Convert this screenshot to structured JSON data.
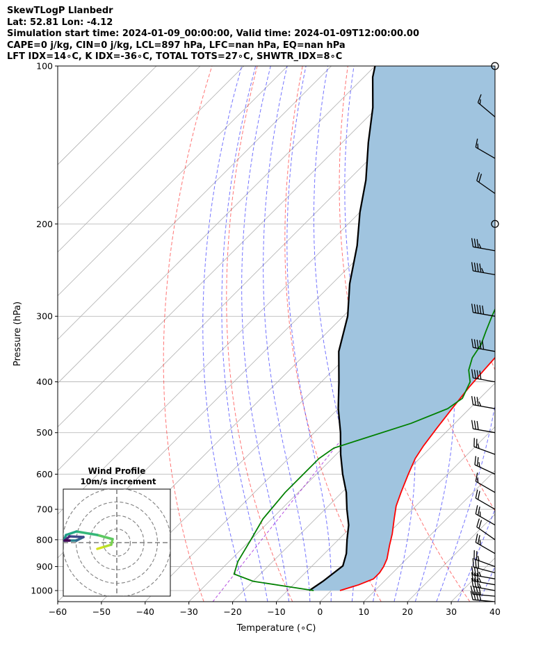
{
  "header": {
    "title": "SkewTLogP Llanbedr",
    "location": "Lat: 52.81   Lon: -4.12",
    "times": "Simulation start time: 2024-01-09_00:00:00, Valid time: 2024-01-09T12:00:00.00",
    "cape_line": "CAPE=0 j/kg, CIN=0 j/kg, LCL=897 hPa, LFC=nan hPa, EQ=nan hPa",
    "index_line": "LFT IDX=14∘C, K IDX=-36∘C, TOTAL TOTS=27∘C, SHWTR_IDX=8∘C"
  },
  "chart_data": {
    "type": "skewt-logp",
    "xlabel": "Temperature (∘C)",
    "ylabel": "Pressure (hPa)",
    "xlim": [
      -60,
      40
    ],
    "ylim": [
      1050,
      100
    ],
    "y_scale": "log",
    "x_ticks": [
      "−60",
      "−50",
      "−40",
      "−30",
      "−20",
      "−10",
      "0",
      "10",
      "20",
      "30",
      "40"
    ],
    "y_ticks": [
      "100",
      "200",
      "300",
      "400",
      "500",
      "600",
      "700",
      "800",
      "900",
      "1000"
    ],
    "grid": true,
    "temperature_profile": {
      "color": "#ff0000",
      "points": [
        [
          2,
          1000
        ],
        [
          5,
          975
        ],
        [
          7,
          950
        ],
        [
          7,
          925
        ],
        [
          6.5,
          900
        ],
        [
          5.5,
          870
        ],
        [
          3,
          820
        ],
        [
          1,
          780
        ],
        [
          -2,
          730
        ],
        [
          -4.5,
          690
        ],
        [
          -6.5,
          650
        ],
        [
          -9,
          600
        ],
        [
          -11,
          560
        ],
        [
          -12,
          530
        ],
        [
          -13,
          490
        ],
        [
          -14,
          450
        ],
        [
          -15,
          410
        ],
        [
          -15.5,
          380
        ],
        [
          -16,
          350
        ],
        [
          -17,
          320
        ],
        [
          -18,
          300
        ],
        [
          -17,
          280
        ],
        [
          -15,
          260
        ],
        [
          -13,
          245
        ],
        [
          -11,
          232
        ],
        [
          -10,
          220
        ],
        [
          -10,
          210
        ],
        [
          -10,
          200
        ],
        [
          -9,
          185
        ],
        [
          -7,
          173
        ],
        [
          -4,
          163
        ],
        [
          -1,
          155
        ],
        [
          0,
          147
        ],
        [
          -1,
          138
        ],
        [
          -2,
          130
        ],
        [
          -2,
          124
        ],
        [
          -1,
          118
        ],
        [
          1,
          111
        ],
        [
          2,
          104
        ],
        [
          2,
          100
        ]
      ]
    },
    "dewpoint_profile": {
      "color": "#008000",
      "points": [
        [
          -4,
          1000
        ],
        [
          -10,
          985
        ],
        [
          -20,
          960
        ],
        [
          -26,
          930
        ],
        [
          -28,
          880
        ],
        [
          -30,
          800
        ],
        [
          -32,
          730
        ],
        [
          -33,
          650
        ],
        [
          -33,
          590
        ],
        [
          -33,
          560
        ],
        [
          -32,
          535
        ],
        [
          -20,
          480
        ],
        [
          -15,
          450
        ],
        [
          -14,
          430
        ],
        [
          -16,
          400
        ],
        [
          -19,
          380
        ],
        [
          -21,
          360
        ],
        [
          -22,
          340
        ],
        [
          -24,
          320
        ],
        [
          -26,
          300
        ],
        [
          -28,
          280
        ],
        [
          -30,
          260
        ],
        [
          -31,
          240
        ],
        [
          -31,
          220
        ],
        [
          -30,
          205
        ],
        [
          -29,
          193
        ],
        [
          -29,
          183
        ],
        [
          -29,
          175
        ],
        [
          -28,
          165
        ],
        [
          -26,
          155
        ],
        [
          -25,
          145
        ],
        [
          -23,
          135
        ],
        [
          -20,
          125
        ],
        [
          -17,
          117
        ],
        [
          -15,
          110
        ],
        [
          -13,
          104
        ],
        [
          -12,
          100
        ]
      ]
    },
    "parcel_profile": {
      "color": "#000000",
      "points": [
        [
          -5,
          1000
        ],
        [
          -4,
          960
        ],
        [
          -3,
          897
        ],
        [
          -5,
          850
        ],
        [
          -8,
          800
        ],
        [
          -11,
          750
        ],
        [
          -15,
          700
        ],
        [
          -19,
          650
        ],
        [
          -24,
          600
        ],
        [
          -29,
          550
        ],
        [
          -34,
          500
        ],
        [
          -40,
          450
        ],
        [
          -46,
          400
        ],
        [
          -53,
          350
        ],
        [
          -59,
          300
        ],
        [
          -66,
          260
        ],
        [
          -73,
          220
        ],
        [
          -80,
          190
        ],
        [
          -86,
          165
        ],
        [
          -94,
          140
        ],
        [
          -101,
          120
        ],
        [
          -108,
          105
        ],
        [
          -110,
          100
        ]
      ]
    },
    "wind_barbs": {
      "color": "#000000",
      "units": "knots",
      "barbs": [
        {
          "p": 1050,
          "spd": 40,
          "dir": 275
        },
        {
          "p": 1025,
          "spd": 40,
          "dir": 275
        },
        {
          "p": 1000,
          "spd": 35,
          "dir": 280
        },
        {
          "p": 975,
          "spd": 35,
          "dir": 280
        },
        {
          "p": 950,
          "spd": 35,
          "dir": 280
        },
        {
          "p": 925,
          "spd": 30,
          "dir": 285
        },
        {
          "p": 900,
          "spd": 25,
          "dir": 290
        },
        {
          "p": 850,
          "spd": 25,
          "dir": 300
        },
        {
          "p": 800,
          "spd": 20,
          "dir": 305
        },
        {
          "p": 750,
          "spd": 25,
          "dir": 300
        },
        {
          "p": 700,
          "spd": 20,
          "dir": 300
        },
        {
          "p": 650,
          "spd": 15,
          "dir": 300
        },
        {
          "p": 600,
          "spd": 25,
          "dir": 295
        },
        {
          "p": 550,
          "spd": 25,
          "dir": 290
        },
        {
          "p": 500,
          "spd": 30,
          "dir": 280
        },
        {
          "p": 450,
          "spd": 35,
          "dir": 280
        },
        {
          "p": 400,
          "spd": 40,
          "dir": 280
        },
        {
          "p": 350,
          "spd": 50,
          "dir": 280
        },
        {
          "p": 300,
          "spd": 50,
          "dir": 280
        },
        {
          "p": 250,
          "spd": 45,
          "dir": 280
        },
        {
          "p": 225,
          "spd": 35,
          "dir": 280
        },
        {
          "p": 200,
          "spd": 0,
          "dir": 0
        },
        {
          "p": 175,
          "spd": 20,
          "dir": 305
        },
        {
          "p": 150,
          "spd": 15,
          "dir": 300
        },
        {
          "p": 125,
          "spd": 15,
          "dir": 310
        },
        {
          "p": 100,
          "spd": 0,
          "dir": 0
        }
      ]
    },
    "hodograph": {
      "title": "Wind Profile",
      "subtitle": "10m/s increment",
      "rings": 4
    }
  }
}
